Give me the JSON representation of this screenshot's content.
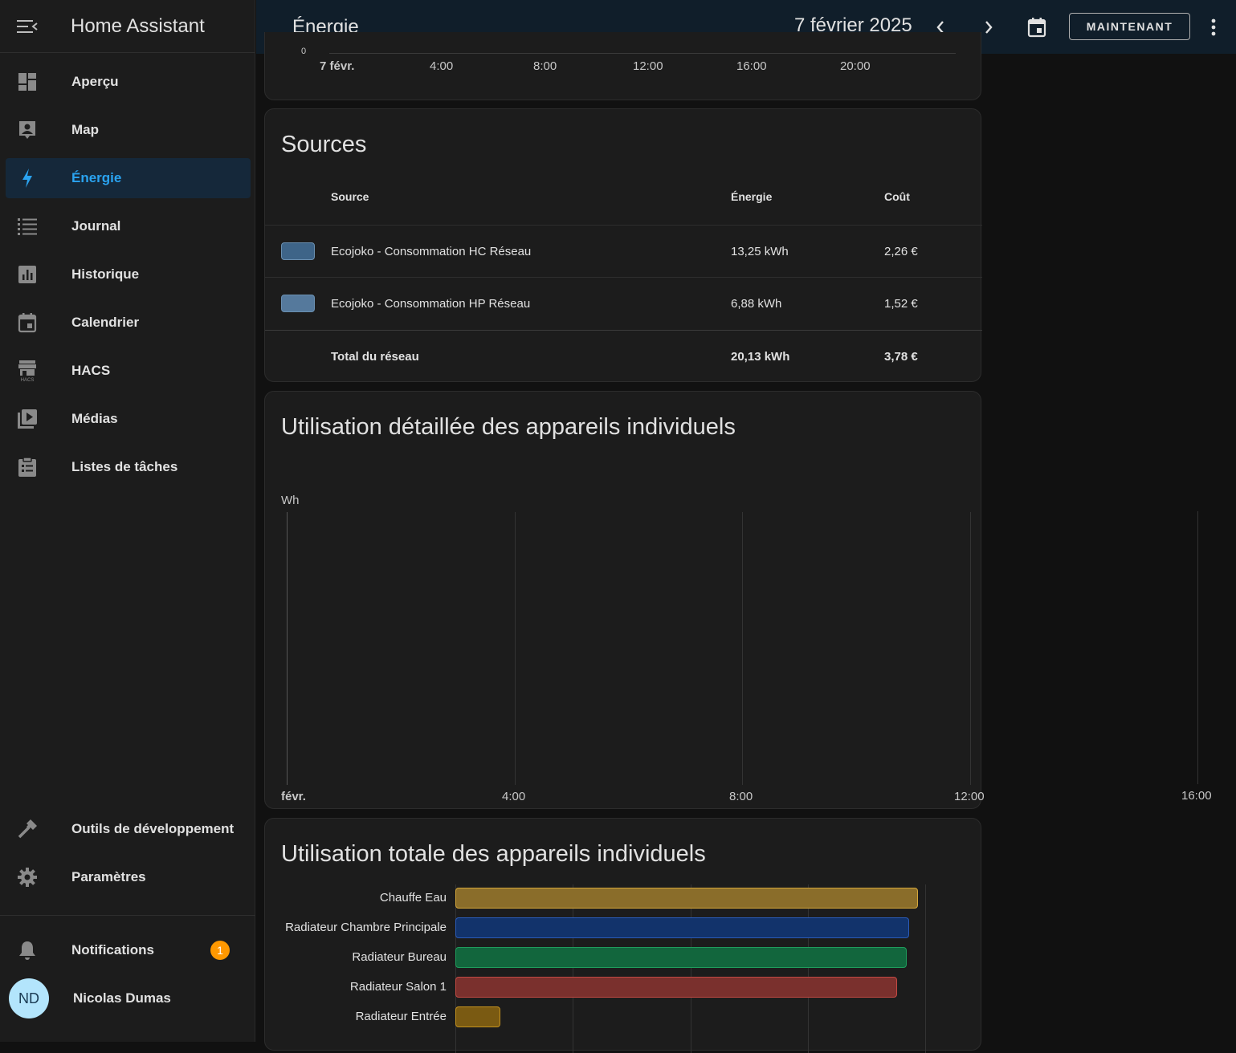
{
  "app": {
    "title": "Home Assistant"
  },
  "sidebar": {
    "items": [
      {
        "label": "Aperçu",
        "icon": "dashboard-icon"
      },
      {
        "label": "Map",
        "icon": "map-account-icon"
      },
      {
        "label": "Énergie",
        "icon": "lightning-icon"
      },
      {
        "label": "Journal",
        "icon": "list-icon"
      },
      {
        "label": "Historique",
        "icon": "chart-box-icon"
      },
      {
        "label": "Calendrier",
        "icon": "calendar-icon"
      },
      {
        "label": "HACS",
        "icon": "hacs-icon"
      },
      {
        "label": "Médias",
        "icon": "play-box-icon"
      },
      {
        "label": "Listes de tâches",
        "icon": "clipboard-list-icon"
      }
    ],
    "bottom": [
      {
        "label": "Outils de développement",
        "icon": "hammer-icon"
      },
      {
        "label": "Paramètres",
        "icon": "gear-icon"
      }
    ],
    "notifications": {
      "label": "Notifications",
      "count": "1"
    },
    "user": {
      "initials": "ND",
      "name": "Nicolas Dumas"
    }
  },
  "topbar": {
    "title": "Énergie",
    "date": "7 février 2025",
    "now_label": "MAINTENANT"
  },
  "top_chart": {
    "zero_label": "0",
    "ticks": [
      "7 févr.",
      "4:00",
      "8:00",
      "12:00",
      "16:00",
      "20:00"
    ]
  },
  "sources": {
    "title": "Sources",
    "headers": {
      "source": "Source",
      "energy": "Énergie",
      "cost": "Coût"
    },
    "rows": [
      {
        "name": "Ecojoko - Consommation HC Réseau",
        "energy": "13,25 kWh",
        "cost": "2,26 €",
        "color": "#3e6488"
      },
      {
        "name": "Ecojoko - Consommation HP Réseau",
        "energy": "6,88 kWh",
        "cost": "1,52 €",
        "color": "#55799c"
      }
    ],
    "total": {
      "label": "Total du réseau",
      "energy": "20,13 kWh",
      "cost": "3,78 €"
    }
  },
  "detailed": {
    "title": "Utilisation détaillée des appareils individuels",
    "unit": "Wh",
    "ticks": [
      "févr.",
      "4:00",
      "8:00",
      "12:00",
      "16:00"
    ]
  },
  "total_usage": {
    "title": "Utilisation totale des appareils individuels",
    "chart_data": {
      "type": "bar",
      "orientation": "horizontal",
      "categories": [
        "Chauffe Eau",
        "Radiateur Chambre Principale",
        "Radiateur Bureau",
        "Radiateur Salon 1",
        "Radiateur Entrée"
      ],
      "values": [
        98.5,
        96.5,
        96,
        94,
        9.5
      ],
      "colors": [
        "#8a6d2a",
        "#12336b",
        "#12663d",
        "#7a302d",
        "#7a5a12"
      ],
      "border_colors": [
        "#d4a63b",
        "#2b5bb8",
        "#1f9c5c",
        "#c24a43",
        "#c4921f"
      ]
    }
  }
}
